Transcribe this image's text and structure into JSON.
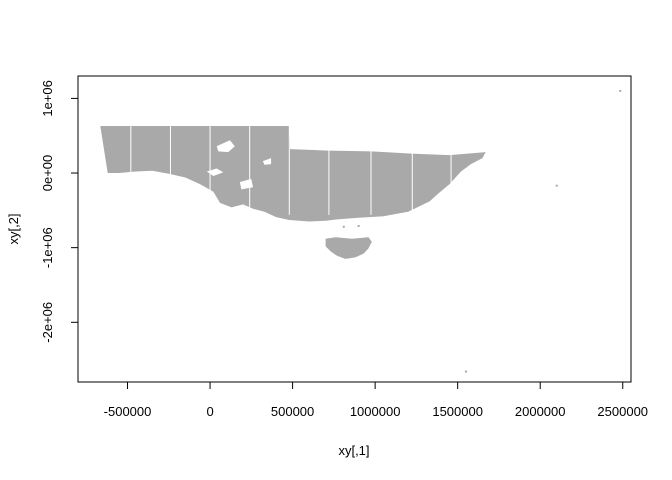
{
  "chart_data": {
    "type": "scatter",
    "title": "",
    "xlabel": "xy[,1]",
    "ylabel": "xy[,2]",
    "xlim": [
      -800000,
      2550000
    ],
    "ylim": [
      -2800000,
      1300000
    ],
    "x_ticks": [
      {
        "value": -500000,
        "label": "-500000"
      },
      {
        "value": 0,
        "label": "0"
      },
      {
        "value": 500000,
        "label": "500000"
      },
      {
        "value": 1000000,
        "label": "1000000"
      },
      {
        "value": 1500000,
        "label": "1500000"
      },
      {
        "value": 2000000,
        "label": "2000000"
      },
      {
        "value": 2500000,
        "label": "2500000"
      }
    ],
    "y_ticks": [
      {
        "value": 1000000,
        "label": "1e+06"
      },
      {
        "value": 0,
        "label": "0e+00"
      },
      {
        "value": -1000000,
        "label": "-1e+06"
      },
      {
        "value": -2000000,
        "label": "-2e+06"
      }
    ],
    "point_color": "#a9a9a9",
    "grid": false,
    "legend": "none",
    "mainland_outline": [
      [
        -665000,
        630000
      ],
      [
        -490000,
        630000
      ],
      [
        -240000,
        630000
      ],
      [
        0,
        630000
      ],
      [
        240000,
        630000
      ],
      [
        480000,
        630000
      ],
      [
        485000,
        320000
      ],
      [
        720000,
        300000
      ],
      [
        980000,
        290000
      ],
      [
        1220000,
        260000
      ],
      [
        1450000,
        240000
      ],
      [
        1670000,
        280000
      ],
      [
        1650000,
        200000
      ],
      [
        1580000,
        120000
      ],
      [
        1520000,
        20000
      ],
      [
        1450000,
        -150000
      ],
      [
        1380000,
        -280000
      ],
      [
        1330000,
        -380000
      ],
      [
        1200000,
        -520000
      ],
      [
        1050000,
        -580000
      ],
      [
        900000,
        -600000
      ],
      [
        780000,
        -620000
      ],
      [
        700000,
        -640000
      ],
      [
        600000,
        -650000
      ],
      [
        480000,
        -630000
      ],
      [
        400000,
        -590000
      ],
      [
        330000,
        -520000
      ],
      [
        260000,
        -480000
      ],
      [
        200000,
        -420000
      ],
      [
        130000,
        -460000
      ],
      [
        60000,
        -400000
      ],
      [
        20000,
        -250000
      ],
      [
        -60000,
        -150000
      ],
      [
        -150000,
        -60000
      ],
      [
        -250000,
        -10000
      ],
      [
        -350000,
        30000
      ],
      [
        -450000,
        20000
      ],
      [
        -550000,
        0
      ],
      [
        -620000,
        0
      ]
    ],
    "tasmania_outline": [
      [
        700000,
        -880000
      ],
      [
        760000,
        -860000
      ],
      [
        860000,
        -880000
      ],
      [
        960000,
        -860000
      ],
      [
        980000,
        -920000
      ],
      [
        960000,
        -1010000
      ],
      [
        930000,
        -1080000
      ],
      [
        880000,
        -1130000
      ],
      [
        820000,
        -1150000
      ],
      [
        770000,
        -1110000
      ],
      [
        730000,
        -1050000
      ],
      [
        700000,
        -980000
      ]
    ],
    "holes": [
      [
        [
          40000,
          360000
        ],
        [
          120000,
          440000
        ],
        [
          150000,
          360000
        ],
        [
          110000,
          280000
        ],
        [
          50000,
          290000
        ]
      ],
      [
        [
          -20000,
          20000
        ],
        [
          40000,
          60000
        ],
        [
          80000,
          10000
        ],
        [
          20000,
          -40000
        ]
      ],
      [
        [
          180000,
          -120000
        ],
        [
          250000,
          -80000
        ],
        [
          260000,
          -190000
        ],
        [
          190000,
          -220000
        ]
      ],
      [
        [
          320000,
          160000
        ],
        [
          370000,
          200000
        ],
        [
          370000,
          120000
        ],
        [
          330000,
          110000
        ]
      ]
    ],
    "column_lines_x": [
      -480000,
      -240000,
      0,
      240000,
      480000,
      720000,
      975000,
      1225000,
      1460000
    ],
    "outliers": [
      [
        2485000,
        1100000
      ],
      [
        2100000,
        -170000
      ],
      [
        1550000,
        -2660000
      ],
      [
        810000,
        -720000
      ],
      [
        900000,
        -710000
      ]
    ]
  }
}
